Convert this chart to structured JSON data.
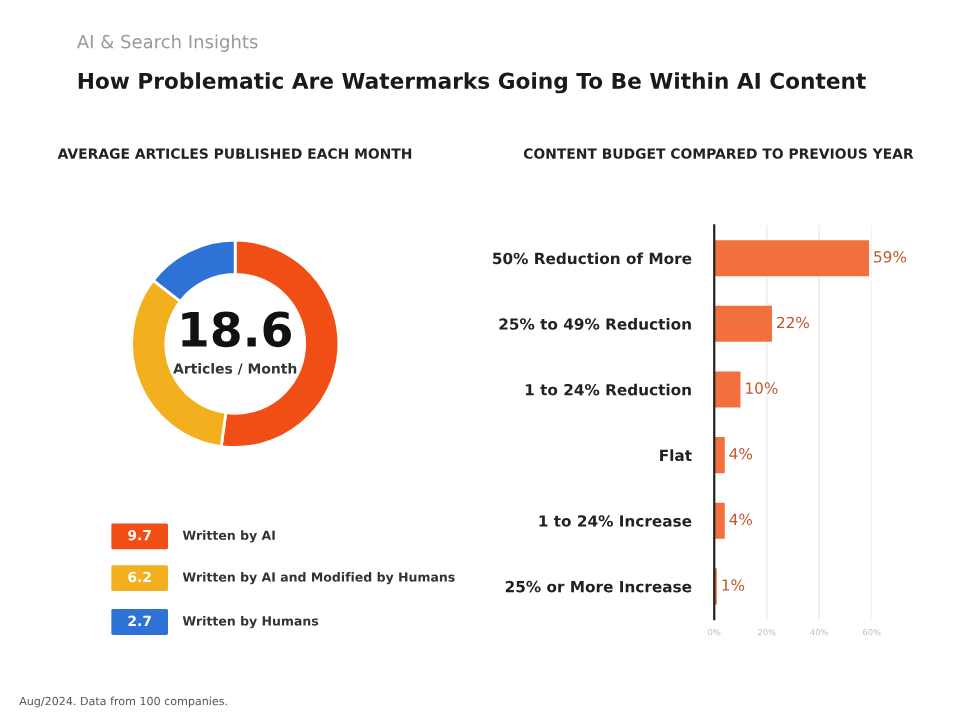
{
  "chart_data": [
    {
      "type": "other",
      "title": "How Problematic Are Watermarks Going To Be Within AI Content",
      "subtitle": "AI & Search Insights",
      "annotations": [
        "Aug/2024. Data from 100 companies."
      ]
    },
    {
      "type": "donut",
      "title": "AVERAGE ARTICLES PUBLISHED EACH MONTH",
      "categories": [
        "Written by AI",
        "Written by AI and Modified by Humans",
        "Written by Humans"
      ],
      "values": [
        9.7,
        6.2,
        2.7
      ],
      "colors": [
        "#f04e14",
        "#f2b01e",
        "#2f72d6"
      ],
      "annotations": [
        "18.6",
        "Articles / Month"
      ],
      "legend": "bottom",
      "data_labels": true
    },
    {
      "type": "bar",
      "orientation": "horizontal",
      "title": "CONTENT BUDGET COMPARED TO PREVIOUS YEAR",
      "categories": [
        "50% Reduction of More",
        "25% to 49% Reduction",
        "1 to 24% Reduction",
        "Flat",
        "1 to 24% Increase",
        "25% or More Increase"
      ],
      "values": [
        59,
        22,
        10,
        4,
        4,
        1
      ],
      "color": "#f2703e",
      "value_labels": [
        "59%",
        "22%",
        "10%",
        "4%",
        "4%",
        "1%"
      ],
      "xlim": [
        0,
        60
      ],
      "xticks": [
        {
          "value": 0,
          "label": "0%"
        },
        {
          "value": 20,
          "label": "20%"
        },
        {
          "value": 40,
          "label": "40%"
        },
        {
          "value": 60,
          "label": "60%"
        }
      ],
      "grid": "x"
    }
  ]
}
